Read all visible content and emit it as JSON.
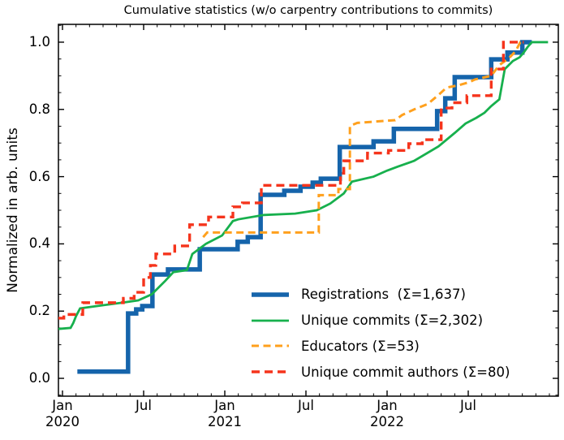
{
  "title": "Cumulative statistics (w/o carpentry contributions to commits)",
  "chart_data": {
    "type": "line",
    "title": "Cumulative statistics (w/o carpentry contributions to commits)",
    "xlabel": "",
    "ylabel": "Normalized in arb. units",
    "x_unit": "months since 2020-01",
    "xlim": [
      -0.3,
      36.66
    ],
    "ylim": [
      -0.053,
      1.053
    ],
    "grid": false,
    "legend_position": "lower right",
    "x_ticks": [
      {
        "m": 0,
        "label": "Jan",
        "year": "2020"
      },
      {
        "m": 6,
        "label": "Jul",
        "year": ""
      },
      {
        "m": 12,
        "label": "Jan",
        "year": "2021"
      },
      {
        "m": 18,
        "label": "Jul",
        "year": ""
      },
      {
        "m": 24,
        "label": "Jan",
        "year": "2022"
      },
      {
        "m": 30,
        "label": "Jul",
        "year": ""
      }
    ],
    "y_ticks": [
      {
        "v": 0.0,
        "label": "0.0"
      },
      {
        "v": 0.2,
        "label": "0.2"
      },
      {
        "v": 0.4,
        "label": "0.4"
      },
      {
        "v": 0.6,
        "label": "0.6"
      },
      {
        "v": 0.8,
        "label": "0.8"
      },
      {
        "v": 1.0,
        "label": "1.0"
      }
    ],
    "series": [
      {
        "name": "Registrations",
        "sum": "1,637",
        "legend_label": "Registrations  (Σ=1,637)",
        "color": "#1564ab",
        "width": 5.5,
        "dash": "",
        "points": [
          [
            1.1,
            0.02
          ],
          [
            4.85,
            0.02
          ],
          [
            4.85,
            0.193
          ],
          [
            5.45,
            0.193
          ],
          [
            5.45,
            0.205
          ],
          [
            5.9,
            0.205
          ],
          [
            5.9,
            0.215
          ],
          [
            6.65,
            0.215
          ],
          [
            6.65,
            0.309
          ],
          [
            7.8,
            0.309
          ],
          [
            7.8,
            0.324
          ],
          [
            10.15,
            0.324
          ],
          [
            10.15,
            0.384
          ],
          [
            12.95,
            0.384
          ],
          [
            12.95,
            0.406
          ],
          [
            13.7,
            0.406
          ],
          [
            13.7,
            0.42
          ],
          [
            14.65,
            0.42
          ],
          [
            14.65,
            0.546
          ],
          [
            16.4,
            0.546
          ],
          [
            16.4,
            0.558
          ],
          [
            17.6,
            0.558
          ],
          [
            17.6,
            0.57
          ],
          [
            18.5,
            0.57
          ],
          [
            18.5,
            0.582
          ],
          [
            19.1,
            0.582
          ],
          [
            19.1,
            0.594
          ],
          [
            20.5,
            0.594
          ],
          [
            20.5,
            0.688
          ],
          [
            23.0,
            0.688
          ],
          [
            23.0,
            0.705
          ],
          [
            24.5,
            0.705
          ],
          [
            24.5,
            0.742
          ],
          [
            27.7,
            0.742
          ],
          [
            27.7,
            0.795
          ],
          [
            28.3,
            0.795
          ],
          [
            28.3,
            0.833
          ],
          [
            29.0,
            0.833
          ],
          [
            29.0,
            0.896
          ],
          [
            31.7,
            0.896
          ],
          [
            31.7,
            0.949
          ],
          [
            32.9,
            0.949
          ],
          [
            32.9,
            0.969
          ],
          [
            34.0,
            0.969
          ],
          [
            34.0,
            1.0
          ],
          [
            34.7,
            1.0
          ]
        ]
      },
      {
        "name": "Unique commits",
        "sum": "2,302",
        "legend_label": "Unique commits (Σ=2,302)",
        "color": "#17b04d",
        "width": 2.8,
        "dash": "",
        "points": [
          [
            -0.3,
            0.147
          ],
          [
            0.6,
            0.15
          ],
          [
            0.8,
            0.165
          ],
          [
            1.0,
            0.185
          ],
          [
            1.3,
            0.208
          ],
          [
            2.0,
            0.212
          ],
          [
            4.4,
            0.225
          ],
          [
            5.6,
            0.232
          ],
          [
            6.6,
            0.25
          ],
          [
            7.6,
            0.29
          ],
          [
            8.2,
            0.316
          ],
          [
            9.2,
            0.322
          ],
          [
            9.6,
            0.37
          ],
          [
            10.6,
            0.4
          ],
          [
            11.8,
            0.425
          ],
          [
            12.6,
            0.468
          ],
          [
            13.0,
            0.473
          ],
          [
            14.9,
            0.486
          ],
          [
            17.2,
            0.49
          ],
          [
            18.8,
            0.5
          ],
          [
            19.8,
            0.52
          ],
          [
            20.8,
            0.55
          ],
          [
            21.4,
            0.585
          ],
          [
            23.0,
            0.6
          ],
          [
            24.0,
            0.618
          ],
          [
            24.8,
            0.63
          ],
          [
            26.0,
            0.647
          ],
          [
            27.8,
            0.69
          ],
          [
            29.0,
            0.73
          ],
          [
            29.8,
            0.758
          ],
          [
            30.6,
            0.775
          ],
          [
            31.2,
            0.79
          ],
          [
            31.7,
            0.81
          ],
          [
            32.3,
            0.83
          ],
          [
            32.7,
            0.92
          ],
          [
            33.0,
            0.932
          ],
          [
            33.3,
            0.944
          ],
          [
            33.8,
            0.955
          ],
          [
            34.1,
            0.969
          ],
          [
            34.4,
            0.986
          ],
          [
            34.7,
            1.0
          ],
          [
            35.9,
            1.0
          ]
        ]
      },
      {
        "name": "Educators",
        "sum": "53",
        "legend_label": "Educators (Σ=53)",
        "color": "#ffa01d",
        "width": 3.0,
        "dash": "9 5.5",
        "points": [
          [
            10.4,
            0.42
          ],
          [
            10.7,
            0.434
          ],
          [
            18.95,
            0.434
          ],
          [
            18.95,
            0.545
          ],
          [
            20.4,
            0.545
          ],
          [
            20.4,
            0.563
          ],
          [
            21.25,
            0.563
          ],
          [
            21.25,
            0.751
          ],
          [
            21.8,
            0.76
          ],
          [
            24.6,
            0.768
          ],
          [
            25.1,
            0.783
          ],
          [
            26.0,
            0.8
          ],
          [
            27.0,
            0.816
          ],
          [
            27.8,
            0.843
          ],
          [
            28.4,
            0.865
          ],
          [
            29.3,
            0.872
          ],
          [
            30.0,
            0.88
          ],
          [
            30.5,
            0.889
          ],
          [
            31.7,
            0.9
          ],
          [
            32.3,
            0.932
          ],
          [
            33.0,
            0.952
          ],
          [
            33.5,
            0.973
          ],
          [
            33.85,
            1.0
          ],
          [
            34.1,
            1.0
          ]
        ]
      },
      {
        "name": "Unique commit authors",
        "sum": "80",
        "legend_label": "Unique commit authors (Σ=80)",
        "color": "#f5341c",
        "width": 3.4,
        "dash": "10 6",
        "points": [
          [
            -0.3,
            0.179
          ],
          [
            0.1,
            0.179
          ],
          [
            0.1,
            0.19
          ],
          [
            1.5,
            0.19
          ],
          [
            1.5,
            0.225
          ],
          [
            4.5,
            0.225
          ],
          [
            4.5,
            0.238
          ],
          [
            5.3,
            0.238
          ],
          [
            5.3,
            0.256
          ],
          [
            6.0,
            0.256
          ],
          [
            6.0,
            0.3
          ],
          [
            6.5,
            0.3
          ],
          [
            6.5,
            0.336
          ],
          [
            6.9,
            0.336
          ],
          [
            6.9,
            0.37
          ],
          [
            8.3,
            0.37
          ],
          [
            8.3,
            0.394
          ],
          [
            9.4,
            0.394
          ],
          [
            9.4,
            0.457
          ],
          [
            10.8,
            0.457
          ],
          [
            10.8,
            0.48
          ],
          [
            12.6,
            0.48
          ],
          [
            12.6,
            0.51
          ],
          [
            13.3,
            0.51
          ],
          [
            13.3,
            0.522
          ],
          [
            14.7,
            0.522
          ],
          [
            14.7,
            0.574
          ],
          [
            20.55,
            0.574
          ],
          [
            20.55,
            0.61
          ],
          [
            20.8,
            0.61
          ],
          [
            20.8,
            0.647
          ],
          [
            22.55,
            0.647
          ],
          [
            22.55,
            0.67
          ],
          [
            24.1,
            0.67
          ],
          [
            24.1,
            0.678
          ],
          [
            25.6,
            0.678
          ],
          [
            25.6,
            0.698
          ],
          [
            26.6,
            0.698
          ],
          [
            26.6,
            0.71
          ],
          [
            28.0,
            0.71
          ],
          [
            28.0,
            0.804
          ],
          [
            28.8,
            0.804
          ],
          [
            28.8,
            0.82
          ],
          [
            29.9,
            0.82
          ],
          [
            29.9,
            0.841
          ],
          [
            31.7,
            0.841
          ],
          [
            31.7,
            0.92
          ],
          [
            32.6,
            0.92
          ],
          [
            32.6,
            1.0
          ],
          [
            34.1,
            1.0
          ]
        ]
      }
    ]
  }
}
